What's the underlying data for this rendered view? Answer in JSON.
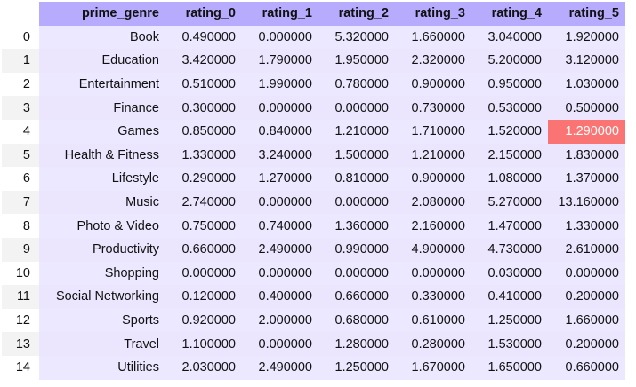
{
  "table": {
    "index_header": "",
    "columns": [
      "prime_genre",
      "rating_0",
      "rating_1",
      "rating_2",
      "rating_3",
      "rating_4",
      "rating_5"
    ],
    "highlight": {
      "row": 4,
      "col": 6,
      "color": "#fb7474"
    },
    "rows": [
      {
        "index": "0",
        "cells": [
          "Book",
          "0.490000",
          "0.000000",
          "5.320000",
          "1.660000",
          "3.040000",
          "1.920000"
        ]
      },
      {
        "index": "1",
        "cells": [
          "Education",
          "3.420000",
          "1.790000",
          "1.950000",
          "2.320000",
          "5.200000",
          "3.120000"
        ]
      },
      {
        "index": "2",
        "cells": [
          "Entertainment",
          "0.510000",
          "1.990000",
          "0.780000",
          "0.900000",
          "0.950000",
          "1.030000"
        ]
      },
      {
        "index": "3",
        "cells": [
          "Finance",
          "0.300000",
          "0.000000",
          "0.000000",
          "0.730000",
          "0.530000",
          "0.500000"
        ]
      },
      {
        "index": "4",
        "cells": [
          "Games",
          "0.850000",
          "0.840000",
          "1.210000",
          "1.710000",
          "1.520000",
          "1.290000"
        ]
      },
      {
        "index": "5",
        "cells": [
          "Health & Fitness",
          "1.330000",
          "3.240000",
          "1.500000",
          "1.210000",
          "2.150000",
          "1.830000"
        ]
      },
      {
        "index": "6",
        "cells": [
          "Lifestyle",
          "0.290000",
          "1.270000",
          "0.810000",
          "0.900000",
          "1.080000",
          "1.370000"
        ]
      },
      {
        "index": "7",
        "cells": [
          "Music",
          "2.740000",
          "0.000000",
          "0.000000",
          "2.080000",
          "5.270000",
          "13.160000"
        ]
      },
      {
        "index": "8",
        "cells": [
          "Photo & Video",
          "0.750000",
          "0.740000",
          "1.360000",
          "2.160000",
          "1.470000",
          "1.330000"
        ]
      },
      {
        "index": "9",
        "cells": [
          "Productivity",
          "0.660000",
          "2.490000",
          "0.990000",
          "4.900000",
          "4.730000",
          "2.610000"
        ]
      },
      {
        "index": "10",
        "cells": [
          "Shopping",
          "0.000000",
          "0.000000",
          "0.000000",
          "0.000000",
          "0.030000",
          "0.000000"
        ]
      },
      {
        "index": "11",
        "cells": [
          "Social Networking",
          "0.120000",
          "0.400000",
          "0.660000",
          "0.330000",
          "0.410000",
          "0.200000"
        ]
      },
      {
        "index": "12",
        "cells": [
          "Sports",
          "0.920000",
          "2.000000",
          "0.680000",
          "0.610000",
          "1.250000",
          "1.660000"
        ]
      },
      {
        "index": "13",
        "cells": [
          "Travel",
          "1.100000",
          "0.000000",
          "1.280000",
          "0.280000",
          "1.530000",
          "0.200000"
        ]
      },
      {
        "index": "14",
        "cells": [
          "Utilities",
          "2.030000",
          "2.490000",
          "1.250000",
          "1.670000",
          "1.650000",
          "0.660000"
        ]
      }
    ]
  }
}
